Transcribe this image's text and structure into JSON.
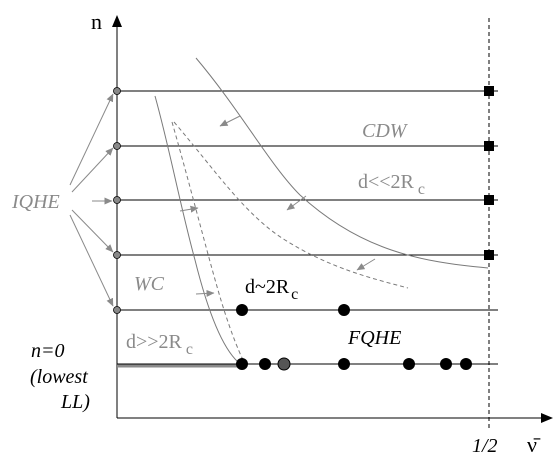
{
  "axes": {
    "y_label": "n",
    "x_label": "ν̄",
    "x_tick_half": "1/2"
  },
  "regions": {
    "cdw": "CDW",
    "wc": "WC",
    "fqhe": "FQHE",
    "iqhe": "IQHE"
  },
  "conditions": {
    "d_much_less_prefix": "d<<2R",
    "d_approx_prefix": "d~2R",
    "d_much_greater_prefix": "d>>2R",
    "subscript": "c"
  },
  "lowest_ll": {
    "line1": "n=0",
    "line2": "(lowest",
    "line3": "LL)"
  },
  "colors": {
    "ink": "#000000",
    "gray_text": "#8a8a8a",
    "gray_line": "#7a7a7a",
    "dot_gray": "#888888"
  }
}
